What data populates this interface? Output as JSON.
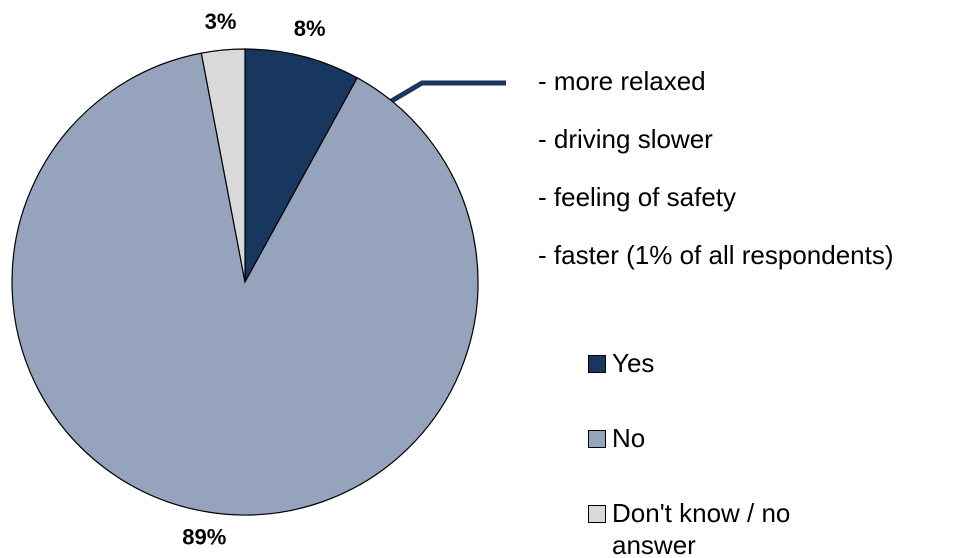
{
  "chart_data": {
    "type": "pie",
    "categories": [
      "Yes",
      "No",
      "Don't know / no answer"
    ],
    "values": [
      8,
      89,
      3
    ],
    "value_labels": [
      "8%",
      "89%",
      "3%"
    ],
    "colors": [
      "#17375e",
      "#95a3bd",
      "#d9d9d9"
    ],
    "legend": "right",
    "annotations": [
      "- more relaxed",
      "- driving slower",
      "- feeling of safety",
      "- faster (1% of all respondents)"
    ]
  }
}
